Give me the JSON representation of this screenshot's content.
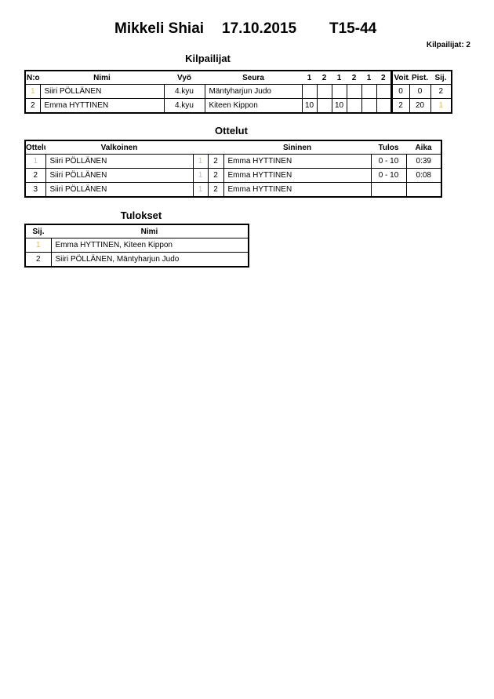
{
  "header": {
    "event": "Mikkeli Shiai",
    "date": "17.10.2015",
    "category": "T15-44",
    "competitors_count": "Kilpailijat: 2"
  },
  "kilpailijat": {
    "title": "Kilpailijat",
    "headers": [
      "N:o",
      "Nimi",
      "Vyö",
      "Seura",
      "1",
      "2",
      "1",
      "2",
      "1",
      "2",
      "Voit.",
      "Pist.",
      "Sij."
    ],
    "rows": [
      {
        "no": "1",
        "name": "Siiri PÖLLÄNEN",
        "belt": "4.kyu",
        "club": "Mäntyharjun Judo",
        "scores": [
          "",
          "",
          "",
          "",
          "",
          ""
        ],
        "wins": "0",
        "points": "0",
        "rank": "2"
      },
      {
        "no": "2",
        "name": "Emma HYTTINEN",
        "belt": "4.kyu",
        "club": "Kiteen Kippon",
        "scores": [
          "10",
          "",
          "10",
          "",
          "",
          ""
        ],
        "wins": "2",
        "points": "20",
        "rank": "1"
      }
    ]
  },
  "ottelut": {
    "title": "Ottelut",
    "headers": [
      "Ottelu",
      "Valkoinen",
      "Sininen",
      "Tulos",
      "Aika"
    ],
    "rows": [
      {
        "match": "1",
        "white": "Siiri PÖLLÄNEN",
        "white_no": "1",
        "blue_no": "2",
        "blue": "Emma HYTTINEN",
        "result": "0 - 10",
        "time": "0:39"
      },
      {
        "match": "2",
        "white": "Siiri PÖLLÄNEN",
        "white_no": "1",
        "blue_no": "2",
        "blue": "Emma HYTTINEN",
        "result": "0 - 10",
        "time": "0:08"
      },
      {
        "match": "3",
        "white": "Siiri PÖLLÄNEN",
        "white_no": "1",
        "blue_no": "2",
        "blue": "Emma HYTTINEN",
        "result": "",
        "time": ""
      }
    ]
  },
  "tulokset": {
    "title": "Tulokset",
    "headers": [
      "Sij.",
      "Nimi"
    ],
    "rows": [
      {
        "rank": "1",
        "name": "Emma HYTTINEN, Kiteen Kippon"
      },
      {
        "rank": "2",
        "name": "Siiri PÖLLÄNEN, Mäntyharjun Judo"
      }
    ]
  }
}
